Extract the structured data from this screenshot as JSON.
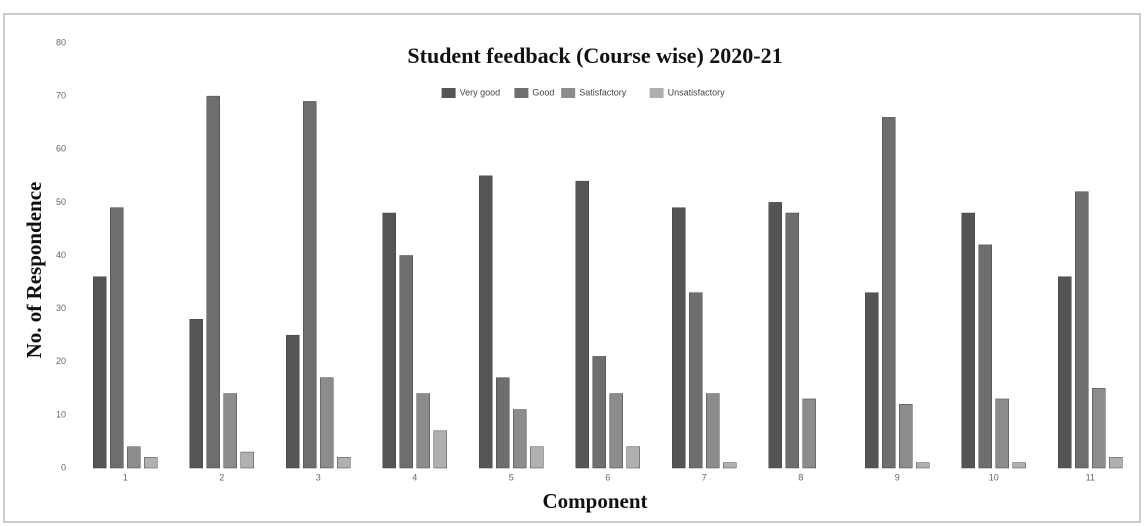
{
  "chart_data": {
    "type": "bar",
    "title": "Student feedback (Course wise) 2020-21",
    "x_label": "Component",
    "y_label": "No. of Respondence",
    "categories": [
      "1",
      "2",
      "3",
      "4",
      "5",
      "6",
      "7",
      "8",
      "9",
      "10",
      "11"
    ],
    "series": [
      {
        "name": "Very good",
        "color": "#555555",
        "values": [
          36,
          28,
          25,
          48,
          55,
          54,
          49,
          50,
          33,
          48,
          36
        ]
      },
      {
        "name": "Good",
        "color": "#6e6e6e",
        "values": [
          49,
          70,
          69,
          40,
          17,
          21,
          33,
          48,
          66,
          42,
          52
        ]
      },
      {
        "name": "Satisfactory",
        "color": "#8c8c8c",
        "values": [
          4,
          14,
          17,
          14,
          11,
          14,
          14,
          13,
          12,
          13,
          15
        ]
      },
      {
        "name": "Unsatisfactory",
        "color": "#b0b0b0",
        "values": [
          2,
          3,
          2,
          7,
          4,
          4,
          1,
          0,
          1,
          1,
          2
        ]
      }
    ],
    "ylim": [
      0,
      80
    ],
    "yticks": [
      0,
      10,
      20,
      30,
      40,
      50,
      60,
      70,
      80
    ],
    "grid": false,
    "legend": "top"
  }
}
